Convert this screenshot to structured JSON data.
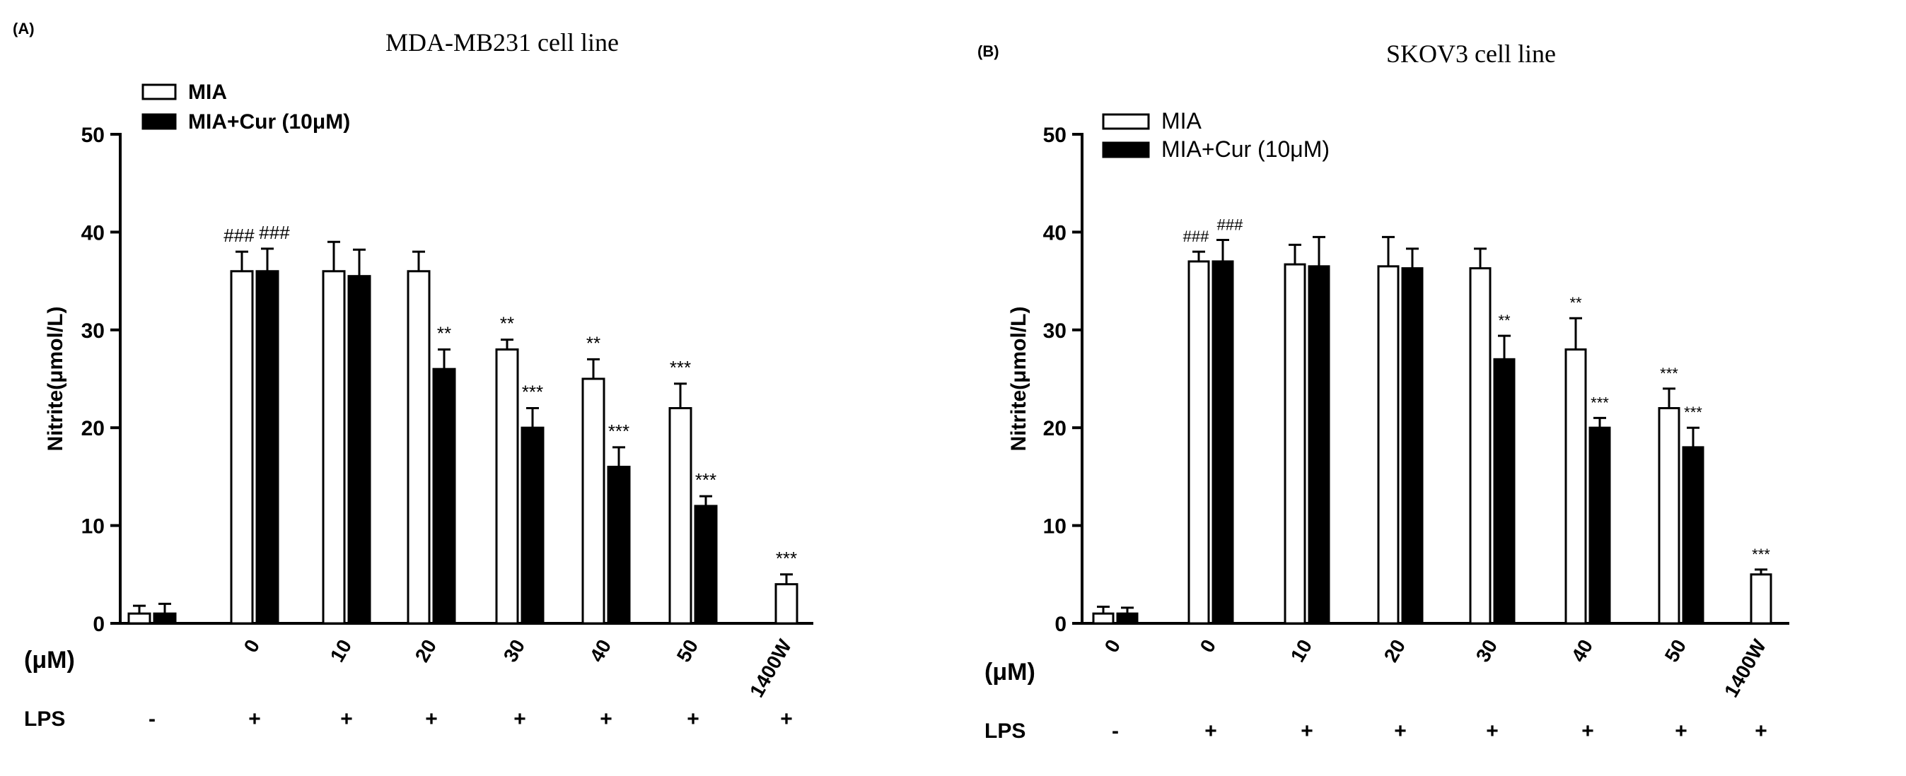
{
  "chart_data": [
    {
      "panel_label": "(A)",
      "type": "bar",
      "title": "MDA-MB231 cell line",
      "ylabel": "Nitrite(μmol/L)",
      "ylim": [
        0,
        50
      ],
      "yticks": [
        0,
        10,
        20,
        30,
        40,
        50
      ],
      "grid": false,
      "legend_position": "top-left",
      "dose_row_label": "(μM)",
      "lps_row_label": "LPS",
      "categories": [
        "",
        "0",
        "10",
        "20",
        "30",
        "40",
        "50",
        "1400W"
      ],
      "lps": [
        "-",
        "+",
        "+",
        "+",
        "+",
        "+",
        "+",
        "+"
      ],
      "series": [
        {
          "name": "MIA",
          "fill": "#ffffff",
          "values": [
            1,
            36,
            36,
            36,
            28,
            25,
            22,
            4
          ],
          "errors": [
            0.8,
            2,
            3,
            2,
            1,
            2,
            2.5,
            1
          ],
          "annotations": [
            "",
            "###",
            "",
            "",
            "**",
            "**",
            "***",
            "***"
          ]
        },
        {
          "name": "MIA+Cur (10μM)",
          "fill": "#000000",
          "values": [
            1,
            36,
            35.5,
            26,
            20,
            16,
            12,
            null
          ],
          "errors": [
            1,
            2.3,
            2.7,
            2,
            2,
            2,
            1,
            null
          ],
          "annotations": [
            "",
            "###",
            "",
            "**",
            "***",
            "***",
            "***",
            ""
          ]
        }
      ]
    },
    {
      "panel_label": "(B)",
      "type": "bar",
      "title": "SKOV3 cell line",
      "ylabel": "Nitrite(μmol/L)",
      "ylim": [
        0,
        50
      ],
      "yticks": [
        0,
        10,
        20,
        30,
        40,
        50
      ],
      "grid": false,
      "legend_position": "top-left",
      "dose_row_label": "(μM)",
      "lps_row_label": "LPS",
      "categories": [
        "0",
        "0",
        "10",
        "20",
        "30",
        "40",
        "50",
        "1400W"
      ],
      "lps": [
        "-",
        "+",
        "+",
        "+",
        "+",
        "+",
        "+",
        "+"
      ],
      "series": [
        {
          "name": "MIA",
          "fill": "#ffffff",
          "values": [
            1,
            37,
            36.7,
            36.5,
            36.3,
            28,
            22,
            5
          ],
          "errors": [
            0.7,
            1,
            2,
            3,
            2,
            3.2,
            2,
            0.5
          ],
          "annotations": [
            "",
            "###",
            "",
            "",
            "",
            "**",
            "***",
            "***"
          ]
        },
        {
          "name": "MIA+Cur (10μM)",
          "fill": "#000000",
          "values": [
            1,
            37,
            36.5,
            36.3,
            27,
            20,
            18,
            null
          ],
          "errors": [
            0.6,
            2.2,
            3,
            2,
            2.4,
            1,
            2,
            null
          ],
          "annotations": [
            "",
            "###",
            "",
            "",
            "**",
            "***",
            "***",
            ""
          ]
        }
      ]
    }
  ]
}
